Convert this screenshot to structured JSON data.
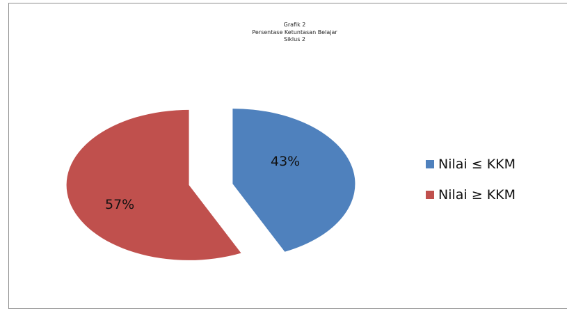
{
  "chart_data": {
    "type": "pie",
    "title": "Grafik 2",
    "subtitle_lines": [
      "Persentase Ketuntasan Belajar",
      "Siklus 2"
    ],
    "categories": [
      "Nilai ≤ KKM",
      "Nilai ≥ KKM"
    ],
    "values": [
      43,
      57
    ],
    "data_labels": [
      "43%",
      "57%"
    ],
    "colors": [
      "#4f81bd",
      "#c0504d"
    ],
    "exploded": true,
    "legend_position": "right"
  }
}
